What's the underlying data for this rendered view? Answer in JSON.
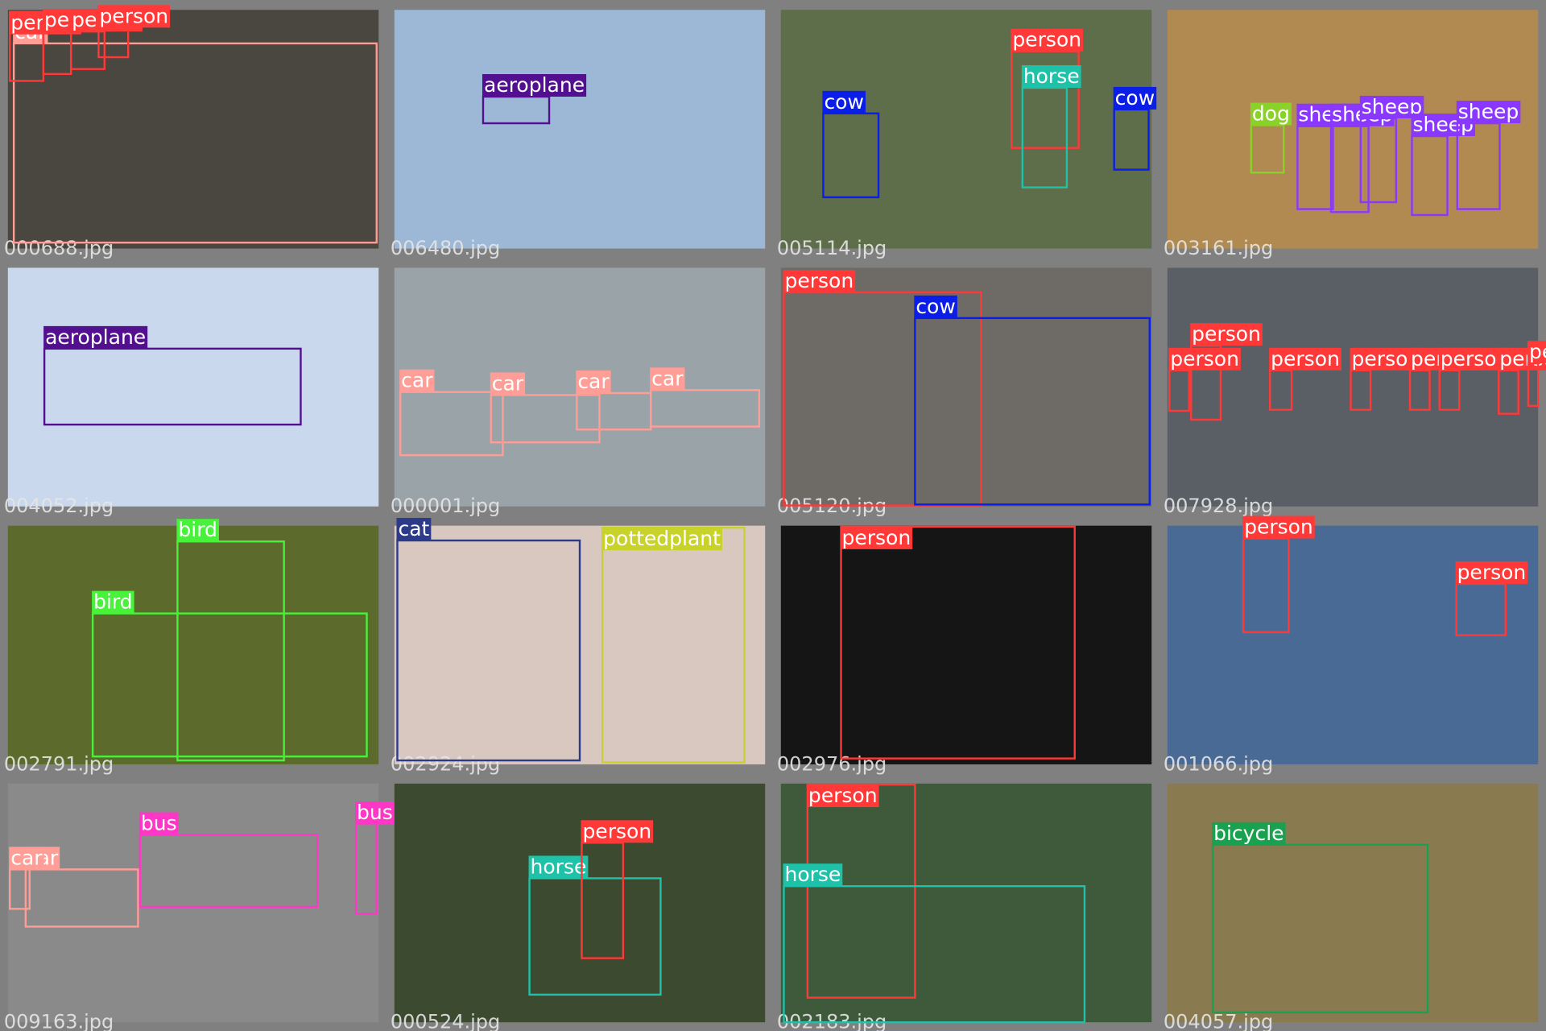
{
  "tiles": [
    {
      "filename": "000688.jpg",
      "detections": [
        {
          "label": "car",
          "color": "#ff9d97"
        },
        {
          "label": "person",
          "color": "#ff3838"
        },
        {
          "label": "person",
          "color": "#ff3838"
        },
        {
          "label": "person",
          "color": "#ff3838"
        },
        {
          "label": "person",
          "color": "#ff3838"
        }
      ]
    },
    {
      "filename": "006480.jpg",
      "detections": [
        {
          "label": "aeroplane",
          "color": "#520f8f"
        }
      ]
    },
    {
      "filename": "005114.jpg",
      "detections": [
        {
          "label": "cow",
          "color": "#0a1ee8"
        },
        {
          "label": "person",
          "color": "#ff3838"
        },
        {
          "label": "horse",
          "color": "#1ec2a8"
        },
        {
          "label": "cow",
          "color": "#0a1ee8"
        }
      ]
    },
    {
      "filename": "003161.jpg",
      "detections": [
        {
          "label": "dog",
          "color": "#8ad12a"
        },
        {
          "label": "sheep",
          "color": "#8a38ff"
        },
        {
          "label": "sheep",
          "color": "#8a38ff"
        },
        {
          "label": "sheep",
          "color": "#8a38ff"
        },
        {
          "label": "sheep",
          "color": "#8a38ff"
        },
        {
          "label": "sheep",
          "color": "#8a38ff"
        }
      ]
    },
    {
      "filename": "004052.jpg",
      "detections": [
        {
          "label": "aeroplane",
          "color": "#520f8f"
        }
      ]
    },
    {
      "filename": "000001.jpg",
      "detections": [
        {
          "label": "car",
          "color": "#ff9d97"
        },
        {
          "label": "car",
          "color": "#ff9d97"
        },
        {
          "label": "car",
          "color": "#ff9d97"
        },
        {
          "label": "car",
          "color": "#ff9d97"
        }
      ]
    },
    {
      "filename": "005120.jpg",
      "detections": [
        {
          "label": "person",
          "color": "#ff3838"
        },
        {
          "label": "cow",
          "color": "#0a1ee8"
        }
      ]
    },
    {
      "filename": "007928.jpg",
      "detections": [
        {
          "label": "person",
          "color": "#ff3838"
        },
        {
          "label": "person",
          "color": "#ff3838"
        },
        {
          "label": "person",
          "color": "#ff3838"
        },
        {
          "label": "person",
          "color": "#ff3838"
        },
        {
          "label": "person",
          "color": "#ff3838"
        },
        {
          "label": "person",
          "color": "#ff3838"
        },
        {
          "label": "person",
          "color": "#ff3838"
        },
        {
          "label": "person",
          "color": "#ff3838"
        }
      ]
    },
    {
      "filename": "002791.jpg",
      "detections": [
        {
          "label": "bird",
          "color": "#48f23a"
        },
        {
          "label": "bird",
          "color": "#48f23a"
        }
      ]
    },
    {
      "filename": "002924.jpg",
      "detections": [
        {
          "label": "cat",
          "color": "#2c3a8a"
        },
        {
          "label": "pottedplant",
          "color": "#c9d12b"
        }
      ]
    },
    {
      "filename": "002976.jpg",
      "detections": [
        {
          "label": "person",
          "color": "#ff3838"
        }
      ]
    },
    {
      "filename": "001066.jpg",
      "detections": [
        {
          "label": "person",
          "color": "#ff3838"
        },
        {
          "label": "person",
          "color": "#ff3838"
        }
      ]
    },
    {
      "filename": "009163.jpg",
      "detections": [
        {
          "label": "car",
          "color": "#ff9d97"
        },
        {
          "label": "car",
          "color": "#ff9d97"
        },
        {
          "label": "bus",
          "color": "#ff37c7"
        },
        {
          "label": "bus",
          "color": "#ff37c7"
        }
      ]
    },
    {
      "filename": "000524.jpg",
      "detections": [
        {
          "label": "horse",
          "color": "#1ec2a8"
        },
        {
          "label": "person",
          "color": "#ff3838"
        }
      ]
    },
    {
      "filename": "002183.jpg",
      "detections": [
        {
          "label": "person",
          "color": "#ff3838"
        },
        {
          "label": "horse",
          "color": "#1ec2a8"
        }
      ]
    },
    {
      "filename": "004057.jpg",
      "detections": [
        {
          "label": "bicycle",
          "color": "#1aa150"
        }
      ]
    }
  ]
}
